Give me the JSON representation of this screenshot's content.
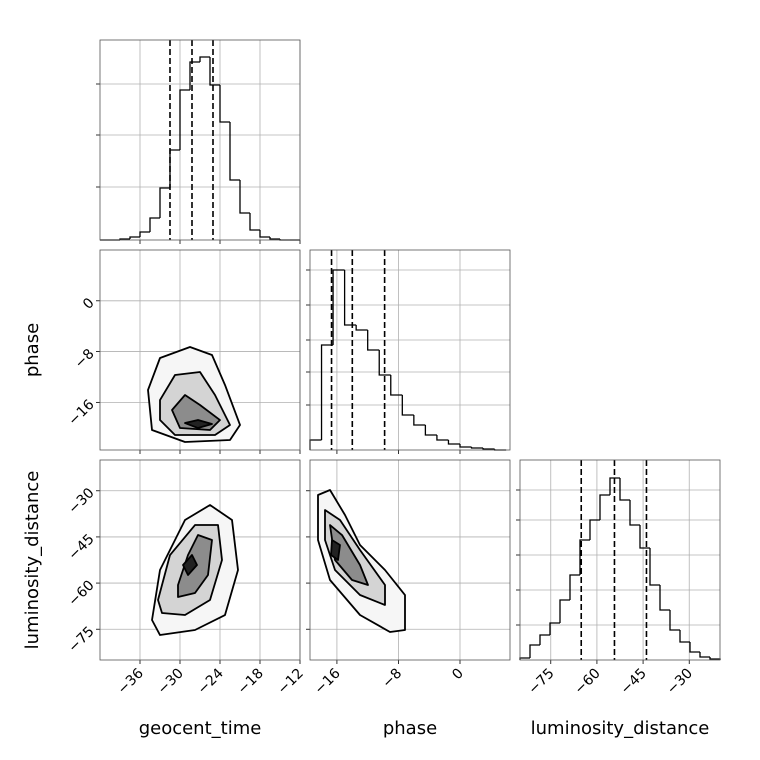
{
  "chart_data": [
    {
      "type": "histogram",
      "xlim": [
        -42,
        -12
      ],
      "ylim": [
        0,
        200
      ],
      "yticks": [
        53,
        105,
        156
      ],
      "bins": [
        -42,
        -40.5,
        -39,
        -37.5,
        -36,
        -34.5,
        -33,
        -31.5,
        -30,
        -28.5,
        -27,
        -25.5,
        -24,
        -22.5,
        -21,
        -19.5,
        -18,
        -16.5,
        -15,
        -13.5,
        -12
      ],
      "values": [
        0,
        0,
        1,
        3,
        8,
        22,
        52,
        90,
        150,
        178,
        183,
        155,
        118,
        60,
        27,
        10,
        3,
        1,
        0,
        0
      ],
      "quantiles": [
        -31.5,
        -28.2,
        -25.05
      ],
      "color": "#000000"
    },
    {
      "type": "contour",
      "xlim": [
        -42,
        -12
      ],
      "ylim": [
        -23.5,
        8
      ],
      "ylabel": "phase",
      "yticks": [
        {
          "value": 0,
          "label": "0"
        },
        {
          "value": -8,
          "label": "−8"
        },
        {
          "value": -16,
          "label": "−16"
        }
      ],
      "contours": [
        {
          "color": "#f6f6f6",
          "x": [
            -34.8,
            -33,
            -28.5,
            -25.2,
            -23.25,
            -21,
            -22.5,
            -29.25,
            -34.2
          ],
          "y": [
            -14.05,
            -9.01,
            -7.28,
            -8.54,
            -13.26,
            -19.56,
            -21.93,
            -22.24,
            -20.35
          ]
        },
        {
          "color": "#d4d4d4",
          "x": [
            -33,
            -30.75,
            -27,
            -24.75,
            -22.5,
            -24.75,
            -30.75,
            -33
          ],
          "y": [
            -15.63,
            -11.69,
            -11.22,
            -14.84,
            -19.56,
            -21.14,
            -21.14,
            -18.78
          ]
        },
        {
          "color": "#8c8c8c",
          "x": [
            -31.2,
            -29.25,
            -27,
            -24,
            -25.5,
            -30
          ],
          "y": [
            -17.2,
            -14.84,
            -16.41,
            -18.78,
            -20.35,
            -20.04
          ]
        },
        {
          "color": "#222222",
          "x": [
            -29.25,
            -27.3,
            -25.2,
            -27.3
          ],
          "y": [
            -19.25,
            -18.78,
            -19.41,
            -20.04
          ]
        }
      ]
    },
    {
      "type": "histogram",
      "xlim": [
        -19.5,
        6.5
      ],
      "ylim": [
        0,
        200
      ],
      "yticks": [
        45,
        78,
        110,
        145,
        180
      ],
      "bins": [
        -19.5,
        -18,
        -16.5,
        -15,
        -13.5,
        -12,
        -10.5,
        -9,
        -7.5,
        -6,
        -4.5,
        -3,
        -1.5,
        0,
        1.5,
        3,
        4.5,
        6
      ],
      "values": [
        10,
        105,
        180,
        125,
        120,
        100,
        75,
        55,
        35,
        25,
        15,
        10,
        6,
        3,
        2,
        1,
        0
      ],
      "quantiles": [
        -16.7,
        -14.0,
        -9.8
      ],
      "color": "#000000"
    },
    {
      "type": "contour",
      "xlim": [
        -42,
        -12
      ],
      "ylim": [
        -85,
        -20
      ],
      "xlabel": "geocent_time",
      "ylabel": "luminosity_distance",
      "xticks": [
        {
          "value": -36,
          "label": "−36"
        },
        {
          "value": -30,
          "label": "−30"
        },
        {
          "value": -24,
          "label": "−24"
        },
        {
          "value": -18,
          "label": "−18"
        },
        {
          "value": -12,
          "label": "−12"
        }
      ],
      "yticks": [
        {
          "value": -30,
          "label": "−30"
        },
        {
          "value": -45,
          "label": "−45"
        },
        {
          "value": -60,
          "label": "−60"
        },
        {
          "value": -75,
          "label": "−75"
        }
      ],
      "contours": [
        {
          "color": "#f6f6f6",
          "x": [
            -34.2,
            -33,
            -29.25,
            -25.5,
            -22.2,
            -21.3,
            -23.25,
            -27.75,
            -33
          ],
          "y": [
            -72,
            -55.75,
            -39.5,
            -34.63,
            -39.5,
            -55.75,
            -70.38,
            -75.25,
            -76.88
          ]
        },
        {
          "color": "#d4d4d4",
          "x": [
            -33.3,
            -31.5,
            -27.75,
            -24.3,
            -23.7,
            -25.5,
            -29.25,
            -32.7
          ],
          "y": [
            -65.5,
            -50.88,
            -41.13,
            -41.13,
            -52.5,
            -65.5,
            -70.38,
            -69.73
          ]
        },
        {
          "color": "#8c8c8c",
          "x": [
            -30.3,
            -28.8,
            -27.3,
            -25.2,
            -25.8,
            -27.75,
            -30.3
          ],
          "y": [
            -60.63,
            -50.88,
            -44.38,
            -46,
            -57.38,
            -63.23,
            -64.53
          ]
        },
        {
          "color": "#222222",
          "x": [
            -29.55,
            -28.2,
            -27.45,
            -28.8
          ],
          "y": [
            -54.13,
            -50.88,
            -54.13,
            -57.38
          ]
        }
      ]
    },
    {
      "type": "contour",
      "xlim": [
        -19.5,
        6.5
      ],
      "ylim": [
        -85,
        -20
      ],
      "xlabel": "phase",
      "xticks": [
        {
          "value": -16,
          "label": "−16"
        },
        {
          "value": -8,
          "label": "−8"
        },
        {
          "value": 0,
          "label": "0"
        }
      ],
      "contours": [
        {
          "color": "#f6f6f6",
          "x": [
            -18.46,
            -16.9,
            -14.95,
            -13,
            -9.75,
            -7.15,
            -7.15,
            -9.1,
            -13,
            -16.9,
            -18.46
          ],
          "y": [
            -31.38,
            -29.75,
            -37.88,
            -47.63,
            -55.75,
            -63.88,
            -75.25,
            -75.9,
            -70.38,
            -59,
            -46
          ]
        },
        {
          "color": "#d4d4d4",
          "x": [
            -17.55,
            -15.6,
            -13,
            -9.75,
            -9.75,
            -13,
            -16.25,
            -17.55
          ],
          "y": [
            -36.25,
            -39.5,
            -49.25,
            -60.63,
            -67.13,
            -63.88,
            -55.75,
            -46
          ]
        },
        {
          "color": "#8c8c8c",
          "x": [
            -16.9,
            -15.34,
            -13,
            -11.96,
            -14.04,
            -16.25
          ],
          "y": [
            -41.13,
            -44.38,
            -54.13,
            -60.63,
            -59,
            -52.5
          ]
        },
        {
          "color": "#222222",
          "x": [
            -16.64,
            -15.6,
            -15.86,
            -16.77
          ],
          "y": [
            -46,
            -47.63,
            -52.5,
            -50.88
          ]
        }
      ]
    },
    {
      "type": "histogram",
      "xlim": [
        -85,
        -20
      ],
      "ylim": [
        0,
        200
      ],
      "yticks": [
        35,
        70,
        105,
        140,
        170
      ],
      "xlabel": "luminosity_distance",
      "xticks": [
        {
          "value": -75,
          "label": "−75"
        },
        {
          "value": -60,
          "label": "−60"
        },
        {
          "value": -45,
          "label": "−45"
        },
        {
          "value": -30,
          "label": "−30"
        }
      ],
      "bins": [
        -85,
        -81.75,
        -78.5,
        -75.25,
        -72,
        -68.75,
        -65.5,
        -62.25,
        -59,
        -55.75,
        -52.5,
        -49.25,
        -46,
        -42.75,
        -39.5,
        -36.25,
        -33,
        -29.75,
        -26.5,
        -23.25,
        -20
      ],
      "values": [
        2,
        15,
        25,
        37,
        60,
        85,
        120,
        140,
        165,
        182,
        160,
        135,
        112,
        75,
        50,
        30,
        18,
        8,
        3,
        1
      ],
      "quantiles": [
        -65.1,
        -54.3,
        -43.9
      ],
      "color": "#000000"
    }
  ]
}
